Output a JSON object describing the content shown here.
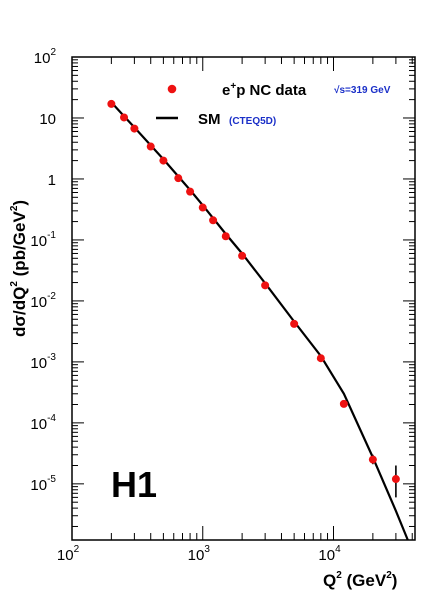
{
  "chart_data": {
    "type": "scatter",
    "title": "",
    "xscale": "log",
    "yscale": "log",
    "xlim": [
      100,
      42000
    ],
    "ylim": [
      1.2e-06,
      100
    ],
    "xticks": [
      {
        "base": "10",
        "exp": "2"
      },
      {
        "base": "10",
        "exp": "3"
      },
      {
        "base": "10",
        "exp": "4"
      }
    ],
    "yticks": [
      {
        "base": "10",
        "exp": "2",
        "value": 100
      },
      {
        "base": "10",
        "exp": "",
        "value": 10
      },
      {
        "base": "1",
        "exp": "",
        "value": 1
      },
      {
        "base": "10",
        "exp": "-1",
        "value": 0.1
      },
      {
        "base": "10",
        "exp": "-2",
        "value": 0.01
      },
      {
        "base": "10",
        "exp": "-3",
        "value": 0.001
      },
      {
        "base": "10",
        "exp": "-4",
        "value": 0.0001
      },
      {
        "base": "10",
        "exp": "-5",
        "value": 1e-05
      }
    ],
    "xlabel": {
      "main": "Q",
      "exp": "2",
      "unit_open": " (GeV",
      "unit_exp": "2",
      "unit_close": ")"
    },
    "ylabel": {
      "pre": "dσ/dQ",
      "exp1": "2",
      "mid": " (pb/GeV",
      "exp2": "2",
      "post": ")"
    },
    "label": "H1",
    "legend": {
      "data_pre": "e",
      "data_sup": "+",
      "data_post": "p NC data",
      "energy": "√s=319 GeV",
      "model": "SM",
      "model_sub": "(CTEQ5D)"
    },
    "series": [
      {
        "kind": "points",
        "color": "#ee1111",
        "x": [
          200,
          250,
          300,
          400,
          500,
          650,
          800,
          1000,
          1200,
          1500,
          2000,
          3000,
          5000,
          8000,
          12000,
          20000,
          30000
        ],
        "y": [
          17,
          10.2,
          6.7,
          3.4,
          2.0,
          1.03,
          0.62,
          0.34,
          0.21,
          0.115,
          0.055,
          0.018,
          0.0042,
          0.00115,
          0.000205,
          2.5e-05,
          1.2e-05
        ],
        "y_err_low": [
          0,
          0,
          0,
          0,
          0,
          0,
          0,
          0,
          0,
          0,
          0,
          0,
          0,
          0,
          0,
          4e-06,
          6e-06
        ],
        "y_err_high": [
          0,
          0,
          0,
          0,
          0,
          0,
          0,
          0,
          0,
          0,
          0,
          0,
          0,
          0,
          0,
          5e-06,
          8e-06
        ]
      },
      {
        "kind": "line",
        "color": "#000000",
        "x": [
          200,
          300,
          500,
          800,
          1000,
          1500,
          2000,
          3000,
          5000,
          8000,
          12000,
          20000,
          30000,
          37000
        ],
        "y": [
          18,
          7.0,
          2.1,
          0.66,
          0.37,
          0.125,
          0.06,
          0.0195,
          0.0046,
          0.00125,
          0.0003,
          2.7e-05,
          3.6e-06,
          1.2e-06
        ]
      }
    ]
  }
}
